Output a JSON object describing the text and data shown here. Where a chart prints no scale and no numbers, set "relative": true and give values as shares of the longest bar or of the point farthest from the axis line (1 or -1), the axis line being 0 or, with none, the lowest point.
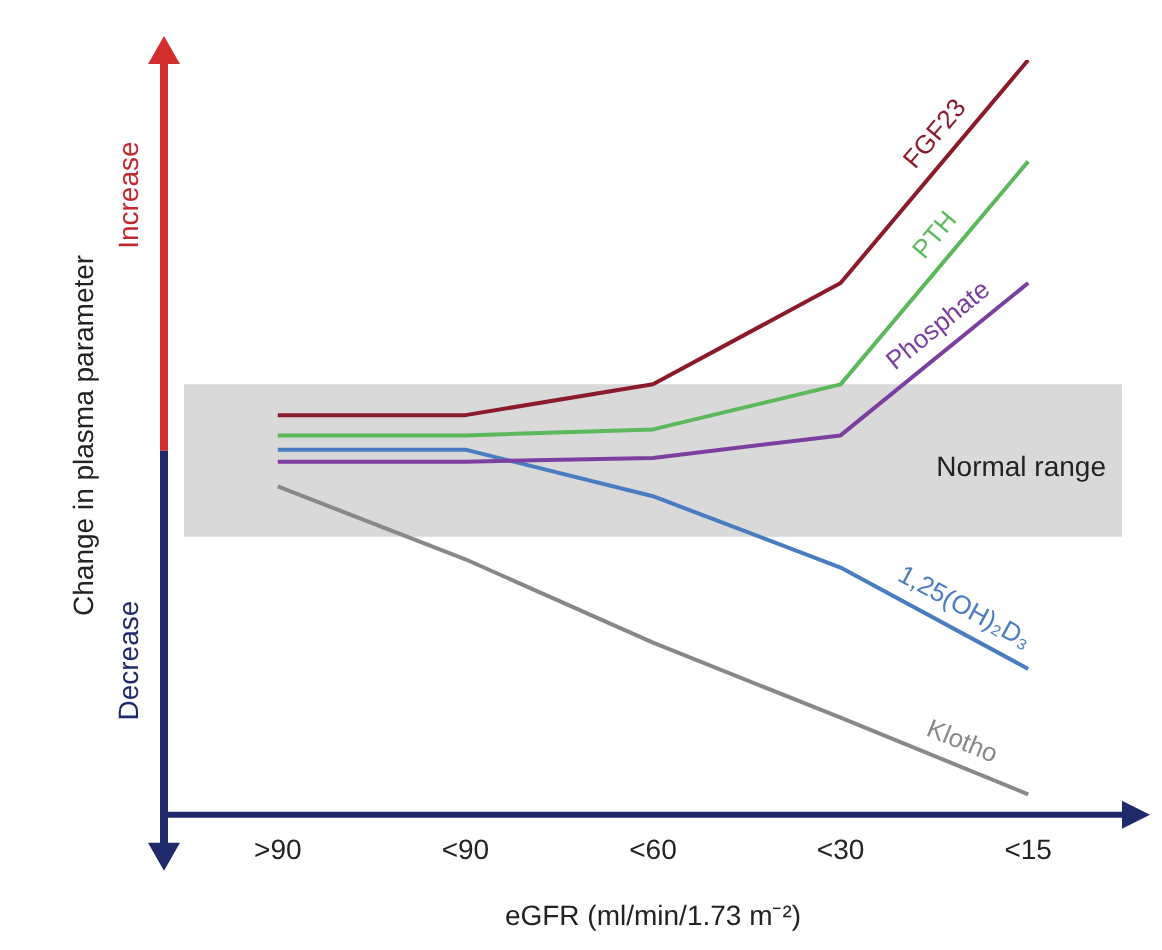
{
  "chart_data": {
    "type": "line",
    "relative": true,
    "xlabel": "eGFR (ml/min/1.73 m⁻²)",
    "ylabel": "Change in plasma parameter",
    "categories": [
      ">90",
      "<90",
      "<60",
      "<30",
      "<15"
    ],
    "series": [
      {
        "name": "FGF23",
        "color": "#8b1a2b",
        "values": [
          0.527,
          0.527,
          0.568,
          0.703,
          1.0
        ]
      },
      {
        "name": "PTH",
        "color": "#5cb85c",
        "values": [
          0.5,
          0.5,
          0.508,
          0.568,
          0.865
        ]
      },
      {
        "name": "Phosphate",
        "color": "#7b3fa0",
        "values": [
          0.465,
          0.465,
          0.47,
          0.5,
          0.703
        ]
      },
      {
        "name": "1,25(OH)₂D₃",
        "color": "#4a7cc0",
        "values": [
          0.481,
          0.481,
          0.419,
          0.324,
          0.189
        ]
      },
      {
        "name": "Klotho",
        "color": "#888888",
        "values": [
          0.432,
          0.335,
          0.224,
          0.124,
          0.022
        ]
      }
    ],
    "bands": [
      {
        "axis": "y",
        "from": 0.365,
        "to": 0.568,
        "label": "Normal range",
        "color": "#d9d9d9"
      }
    ],
    "annotations": [
      "Increase",
      "Decrease"
    ],
    "grid": false,
    "legend": false,
    "marker": "none",
    "line_style": "solid"
  }
}
